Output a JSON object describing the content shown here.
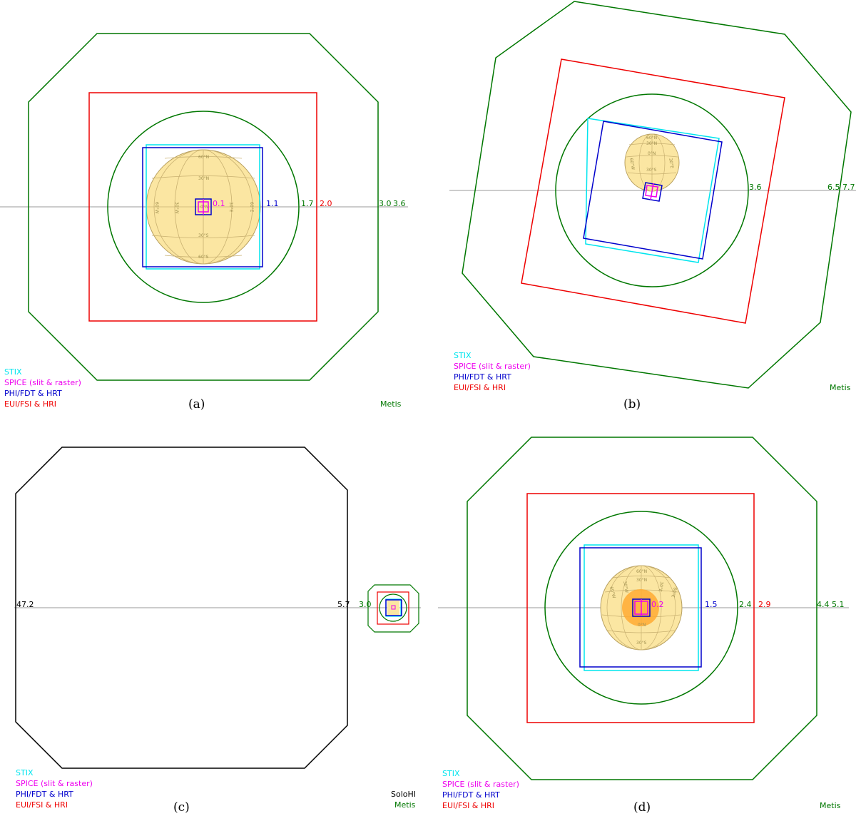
{
  "colors": {
    "stix": "#00e5ee",
    "spice": "#ee00ee",
    "phi": "#0000cc",
    "eui": "#ee0000",
    "metis": "#007700",
    "solohi": "#000000",
    "sun_fill": "#fbe6a2",
    "sun_stroke": "#b8a060",
    "active_region": "#ffaa33",
    "axis": "#999999"
  },
  "legend": {
    "stix": "STIX",
    "spice": "SPICE (slit & raster)",
    "phi": "PHI/FDT & HRT",
    "eui": "EUI/FSI & HRI",
    "metis": "Metis",
    "solohi": "SoloHI"
  },
  "panels": [
    {
      "id": "a",
      "caption": "(a)",
      "ring_labels": {
        "spice": "0.1",
        "phi": "1.1",
        "metis_inner": "1.7",
        "eui": "2.0",
        "metis_outer_a": "3.0",
        "metis_outer_b": "3.6"
      },
      "grid_labels": {
        "lat_60n": "60°N",
        "lat_30n": "30°N",
        "lat_30s": "30°S",
        "lat_60s": "60°S",
        "lon_60w": "60°W",
        "lon_30w": "30°W",
        "lon_30e": "30°E",
        "lon_60e": "60°E",
        "center": "0°N"
      }
    },
    {
      "id": "b",
      "caption": "(b)",
      "ring_labels": {
        "metis_inner": "3.6",
        "metis_outer_a": "6.5",
        "metis_outer_b": "7.7"
      },
      "grid_labels": {
        "lat_60n": "60°N",
        "lat_30n": "30°N",
        "lat_0n": "0°N",
        "lat_30s": "30°S",
        "lon_60w": "60°W",
        "lon_30e": "30°E"
      }
    },
    {
      "id": "c",
      "caption": "(c)",
      "ring_labels": {
        "solohi_outer": "47.2",
        "solohi_inner": "5.7",
        "metis_outer": "3.0"
      }
    },
    {
      "id": "d",
      "caption": "(d)",
      "ring_labels": {
        "spice": "0.2",
        "phi": "1.5",
        "metis_inner": "2.4",
        "eui": "2.9",
        "metis_outer_a": "4.4",
        "metis_outer_b": "5.1"
      },
      "grid_labels": {
        "lat_60n": "60°N",
        "lat_30n": "30°N",
        "lat_0n": "0°N",
        "lat_30s": "30°S",
        "lon_60w": "60°W",
        "lon_30w": "30°W",
        "lon_30e": "30°E",
        "lon_60e": "60°E"
      }
    }
  ]
}
